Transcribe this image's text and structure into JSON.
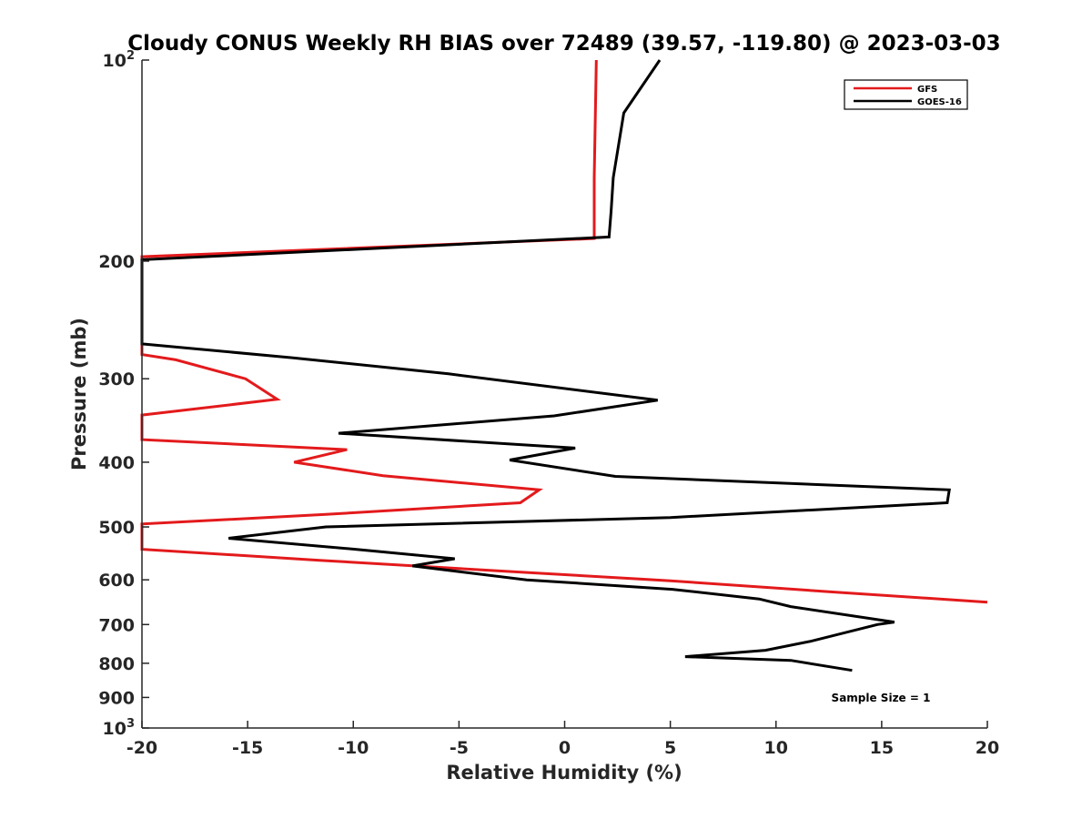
{
  "chart_data": {
    "type": "line",
    "title": "Cloudy CONUS Weekly RH BIAS over 72489 (39.57, -119.80) @ 2023-03-03",
    "xlabel": "Relative Humidity (%)",
    "ylabel": "Pressure (mb)",
    "xlim": [
      -20,
      20
    ],
    "ylim": [
      100,
      1000
    ],
    "y_scale": "log",
    "y_reversed": true,
    "xticks": [
      -20,
      -15,
      -10,
      -5,
      0,
      5,
      10,
      15,
      20
    ],
    "xtick_labels": [
      "-20",
      "-15",
      "-10",
      "-5",
      "0",
      "5",
      "10",
      "15",
      "20"
    ],
    "yticks": [
      {
        "value": 100,
        "base": "10",
        "exp": "2"
      },
      {
        "value": 200,
        "label": "200"
      },
      {
        "value": 300,
        "label": "300"
      },
      {
        "value": 400,
        "label": "400"
      },
      {
        "value": 500,
        "label": "500"
      },
      {
        "value": 600,
        "label": "600"
      },
      {
        "value": 700,
        "label": "700"
      },
      {
        "value": 800,
        "label": "800"
      },
      {
        "value": 900,
        "label": "900"
      },
      {
        "value": 1000,
        "base": "10",
        "exp": "3"
      }
    ],
    "grid": false,
    "legend_position": "top-right",
    "annotation": "Sample Size = 1",
    "series": [
      {
        "name": "GFS",
        "color": "#e31a1c",
        "points": [
          [
            1.5,
            100
          ],
          [
            1.4,
            150
          ],
          [
            1.4,
            185
          ],
          [
            -20,
            197
          ],
          [
            -20,
            276
          ],
          [
            -18.4,
            281
          ],
          [
            -15.1,
            300
          ],
          [
            -13.6,
            322
          ],
          [
            -20,
            340
          ],
          [
            -20,
            370
          ],
          [
            -10.3,
            383
          ],
          [
            -12.8,
            400
          ],
          [
            -8.6,
            419
          ],
          [
            -1.2,
            440
          ],
          [
            -2.1,
            460
          ],
          [
            -11.4,
            479
          ],
          [
            -20,
            495
          ],
          [
            -20,
            540
          ],
          [
            -11.6,
            561
          ],
          [
            -3,
            582
          ],
          [
            5,
            602
          ],
          [
            12.5,
            625
          ],
          [
            20,
            648
          ]
        ]
      },
      {
        "name": "GOES-16",
        "color": "#000000",
        "points": [
          [
            4.5,
            100
          ],
          [
            2.8,
            120
          ],
          [
            2.3,
            150
          ],
          [
            2.2,
            168
          ],
          [
            2.1,
            184
          ],
          [
            -20,
            199
          ],
          [
            -20,
            266
          ],
          [
            -12.9,
            279
          ],
          [
            -5.5,
            295
          ],
          [
            4.4,
            323
          ],
          [
            -0.5,
            341
          ],
          [
            -10.7,
            362
          ],
          [
            0.5,
            381
          ],
          [
            -2.6,
            397
          ],
          [
            2.4,
            420
          ],
          [
            18.2,
            440
          ],
          [
            18.1,
            460
          ],
          [
            5,
            484
          ],
          [
            -11.3,
            500
          ],
          [
            -15.9,
            520
          ],
          [
            -9.9,
            540
          ],
          [
            -5.2,
            558
          ],
          [
            -7.2,
            572
          ],
          [
            -1.8,
            600
          ],
          [
            5.1,
            620
          ],
          [
            9.2,
            641
          ],
          [
            10.7,
            658
          ],
          [
            15.6,
            694
          ],
          [
            14.8,
            700
          ],
          [
            11.6,
            742
          ],
          [
            9.5,
            765
          ],
          [
            5.7,
            782
          ],
          [
            10.7,
            792
          ],
          [
            13.6,
            820
          ]
        ]
      }
    ]
  }
}
